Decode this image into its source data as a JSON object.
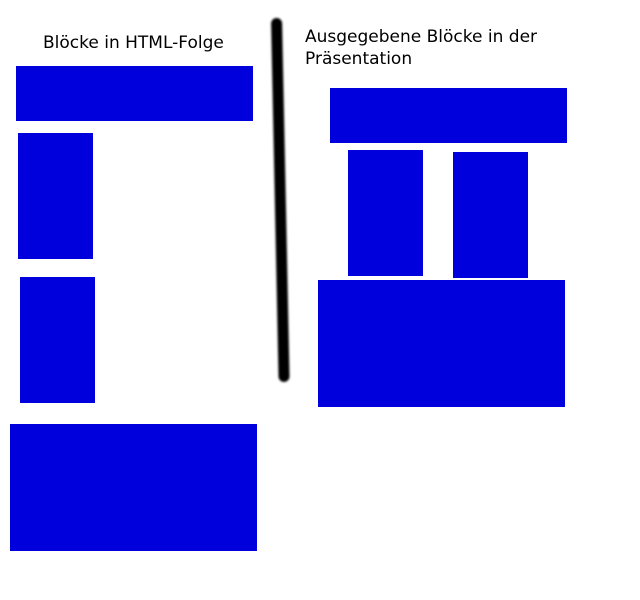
{
  "colors": {
    "block": "#0000dd",
    "divider": "#000000"
  },
  "left_panel": {
    "title": "Blöcke in HTML-Folge",
    "block_count": 4
  },
  "right_panel": {
    "title_line1": "Ausgegebene Blöcke in der",
    "title_line2": "Präsentation",
    "block_count": 4
  }
}
